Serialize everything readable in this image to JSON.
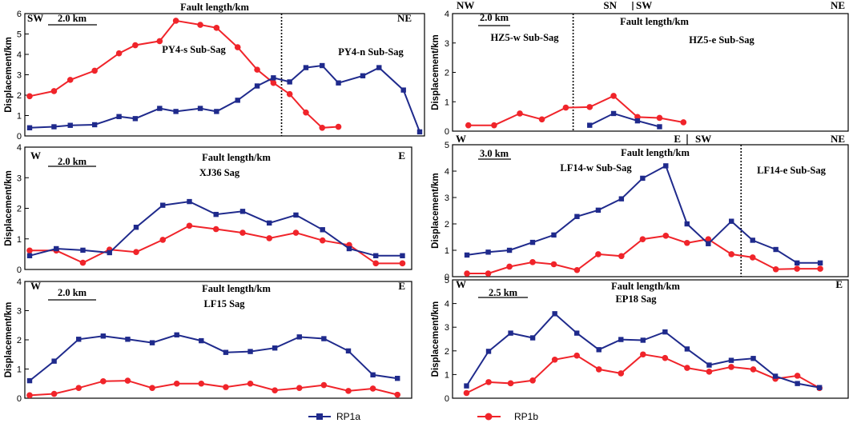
{
  "colors": {
    "rp1a": "#1f2a8c",
    "rp1b": "#f0242a"
  },
  "legend": {
    "rp1a": "RP1a",
    "rp1b": "RP1b"
  },
  "chart_data": [
    {
      "id": "py4",
      "type": "line",
      "title": "Fault length/km",
      "ylabel": "Displacement/km",
      "ylim": [
        0,
        6
      ],
      "yticks": [
        0,
        1,
        2,
        3,
        4,
        5,
        6
      ],
      "xrange": [
        0,
        24
      ],
      "scale_label": "2.0 km",
      "directions": {
        "left": "SW",
        "right": "NE"
      },
      "subsags": [
        "PY4-s Sub-Sag",
        "PY4-n Sub-Sag"
      ],
      "divider_x": 15.5,
      "series": [
        {
          "name": "RP1a",
          "x": [
            0,
            1.5,
            2.5,
            4,
            5.5,
            6.5,
            8,
            9,
            10.5,
            11.5,
            12.8,
            14,
            15,
            16,
            17,
            18,
            19,
            20.5,
            21.5,
            23,
            24
          ],
          "values": [
            0.4,
            0.45,
            0.52,
            0.55,
            0.95,
            0.85,
            1.35,
            1.2,
            1.35,
            1.2,
            1.75,
            2.45,
            2.85,
            2.65,
            3.35,
            3.45,
            2.6,
            2.95,
            3.35,
            2.25,
            0.2
          ]
        },
        {
          "name": "RP1b",
          "x": [
            0,
            1.5,
            2.5,
            4,
            5.5,
            6.5,
            8,
            9,
            10.5,
            11.5,
            12.8,
            14,
            15,
            16,
            17,
            18,
            19
          ],
          "values": [
            1.95,
            2.2,
            2.75,
            3.2,
            4.05,
            4.45,
            4.65,
            5.65,
            5.45,
            5.3,
            4.35,
            3.25,
            2.6,
            2.05,
            1.15,
            0.4,
            0.45
          ]
        }
      ]
    },
    {
      "id": "hz5",
      "type": "line",
      "title": "Fault length/km",
      "ylabel": "Displacement/km",
      "ylim": [
        0,
        4
      ],
      "yticks": [
        0,
        1,
        2,
        3,
        4
      ],
      "xrange": [
        0,
        21
      ],
      "scale_label": "2.0 km",
      "directions": {
        "left": "NW",
        "mid_left": "SN",
        "mid_right": "SW",
        "right": "NE"
      },
      "subsags": [
        "HZ5-w Sub-Sag",
        "HZ5-e Sub-Sag"
      ],
      "divider_x": 6.3,
      "series": [
        {
          "name": "RP1a",
          "x": [
            7.2,
            8.5,
            9.8,
            11
          ],
          "values": [
            0.2,
            0.6,
            0.35,
            0.15
          ]
        },
        {
          "name": "RP1b",
          "x": [
            0.6,
            2,
            3.4,
            4.6,
            5.9,
            7.2,
            8.5,
            9.8,
            11,
            12.3
          ],
          "values": [
            0.2,
            0.2,
            0.6,
            0.4,
            0.8,
            0.82,
            1.2,
            0.48,
            0.45,
            0.3
          ]
        }
      ]
    },
    {
      "id": "xj36",
      "type": "line",
      "title": "Fault length/km",
      "ylabel": "Displacement/km",
      "ylim": [
        0,
        4
      ],
      "yticks": [
        0,
        1,
        2,
        3,
        4
      ],
      "xrange": [
        0,
        17
      ],
      "scale_label": "2.0 km",
      "directions": {
        "left": "W",
        "right": "E"
      },
      "subsags": [
        "XJ36 Sag"
      ],
      "series": [
        {
          "name": "RP1a",
          "x": [
            0,
            1.2,
            2.4,
            3.6,
            4.8,
            6,
            7.2,
            8.4,
            9.6,
            10.8,
            12,
            13.2,
            14.4,
            15.6,
            16.8
          ],
          "values": [
            0.45,
            0.68,
            0.63,
            0.55,
            1.38,
            2.1,
            2.22,
            1.8,
            1.9,
            1.52,
            1.78,
            1.3,
            0.68,
            0.45,
            0.45
          ]
        },
        {
          "name": "RP1b",
          "x": [
            0,
            1.2,
            2.4,
            3.6,
            4.8,
            6,
            7.2,
            8.4,
            9.6,
            10.8,
            12,
            13.2,
            14.4,
            15.6,
            16.8
          ],
          "values": [
            0.62,
            0.62,
            0.22,
            0.65,
            0.57,
            0.97,
            1.43,
            1.32,
            1.2,
            1.02,
            1.2,
            0.95,
            0.8,
            0.2,
            0.2
          ]
        }
      ]
    },
    {
      "id": "lf14",
      "type": "line",
      "title": "Fault length/km",
      "ylabel": "Displacement/km",
      "ylim": [
        0,
        5
      ],
      "yticks": [
        0,
        1,
        2,
        3,
        4,
        5
      ],
      "xrange": [
        0,
        20
      ],
      "scale_label": "3.0 km",
      "directions": {
        "left": "W",
        "mid_left": "E",
        "mid_right": "SW",
        "right": "NE"
      },
      "subsags": [
        "LF14-w Sub-Sag",
        "LF14-e Sub-Sag"
      ],
      "divider_x": 14.7,
      "series": [
        {
          "name": "RP1a",
          "x": [
            0.5,
            1.6,
            2.7,
            3.9,
            5.0,
            6.2,
            7.3,
            8.5,
            9.6,
            10.8,
            11.9,
            13.0,
            14.2,
            15.3,
            16.5,
            17.6,
            18.8
          ],
          "values": [
            0.82,
            0.93,
            1.0,
            1.3,
            1.58,
            2.28,
            2.52,
            2.95,
            3.73,
            4.2,
            2.0,
            1.25,
            2.1,
            1.38,
            1.03,
            0.52,
            0.52
          ]
        },
        {
          "name": "RP1b",
          "x": [
            0.5,
            1.6,
            2.7,
            3.9,
            5.0,
            6.2,
            7.3,
            8.5,
            9.6,
            10.8,
            11.9,
            13.0,
            14.2,
            15.3,
            16.5,
            17.6,
            18.8
          ],
          "values": [
            0.12,
            0.12,
            0.38,
            0.55,
            0.47,
            0.25,
            0.85,
            0.78,
            1.42,
            1.55,
            1.28,
            1.42,
            0.85,
            0.73,
            0.28,
            0.3,
            0.3
          ]
        }
      ]
    },
    {
      "id": "lf15",
      "type": "line",
      "title": "Fault length/km",
      "ylabel": "Displacement/km",
      "ylim": [
        0,
        4
      ],
      "yticks": [
        0,
        1,
        2,
        3,
        4
      ],
      "xrange": [
        0,
        20
      ],
      "scale_label": "2.0 km",
      "directions": {
        "left": "W",
        "right": "E"
      },
      "subsags": [
        "LF15 Sag"
      ],
      "series": [
        {
          "name": "RP1a",
          "x": [
            0,
            1.3,
            2.6,
            3.9,
            5.2,
            6.5,
            7.8,
            9.1,
            10.4,
            11.7,
            13,
            14.3,
            15.6,
            16.9,
            18.2,
            19.5
          ],
          "values": [
            0.6,
            1.27,
            2.02,
            2.13,
            2.02,
            1.9,
            2.17,
            1.97,
            1.57,
            1.6,
            1.72,
            2.1,
            2.04,
            1.62,
            0.8,
            0.68
          ]
        },
        {
          "name": "RP1b",
          "x": [
            0,
            1.3,
            2.6,
            3.9,
            5.2,
            6.5,
            7.8,
            9.1,
            10.4,
            11.7,
            13,
            14.3,
            15.6,
            16.9,
            18.2,
            19.5
          ],
          "values": [
            0.1,
            0.15,
            0.35,
            0.58,
            0.6,
            0.35,
            0.5,
            0.5,
            0.38,
            0.5,
            0.27,
            0.35,
            0.45,
            0.25,
            0.33,
            0.12
          ]
        }
      ]
    },
    {
      "id": "ep18",
      "type": "line",
      "title": "Fault length/km",
      "ylabel": "Displacement/km",
      "ylim": [
        0,
        5
      ],
      "yticks": [
        0,
        1,
        2,
        3,
        4,
        5
      ],
      "xrange": [
        0,
        21
      ],
      "scale_label": "2.5 km",
      "directions": {
        "left": "W",
        "right": "E"
      },
      "subsags": [
        "EP18 Sag"
      ],
      "series": [
        {
          "name": "RP1a",
          "x": [
            0.5,
            1.7,
            2.9,
            4.1,
            5.3,
            6.5,
            7.7,
            8.9,
            10.1,
            11.3,
            12.5,
            13.7,
            14.9,
            16.1,
            17.3,
            18.5,
            19.7
          ],
          "values": [
            0.52,
            1.98,
            2.75,
            2.55,
            3.57,
            2.75,
            2.05,
            2.48,
            2.45,
            2.8,
            2.08,
            1.4,
            1.6,
            1.68,
            0.93,
            0.62,
            0.45
          ]
        },
        {
          "name": "RP1b",
          "x": [
            0.5,
            1.7,
            2.9,
            4.1,
            5.3,
            6.5,
            7.7,
            8.9,
            10.1,
            11.3,
            12.5,
            13.7,
            14.9,
            16.1,
            17.3,
            18.5,
            19.7
          ],
          "values": [
            0.22,
            0.68,
            0.63,
            0.75,
            1.63,
            1.8,
            1.22,
            1.05,
            1.85,
            1.7,
            1.28,
            1.12,
            1.32,
            1.22,
            0.82,
            0.95,
            0.43
          ]
        }
      ]
    }
  ]
}
